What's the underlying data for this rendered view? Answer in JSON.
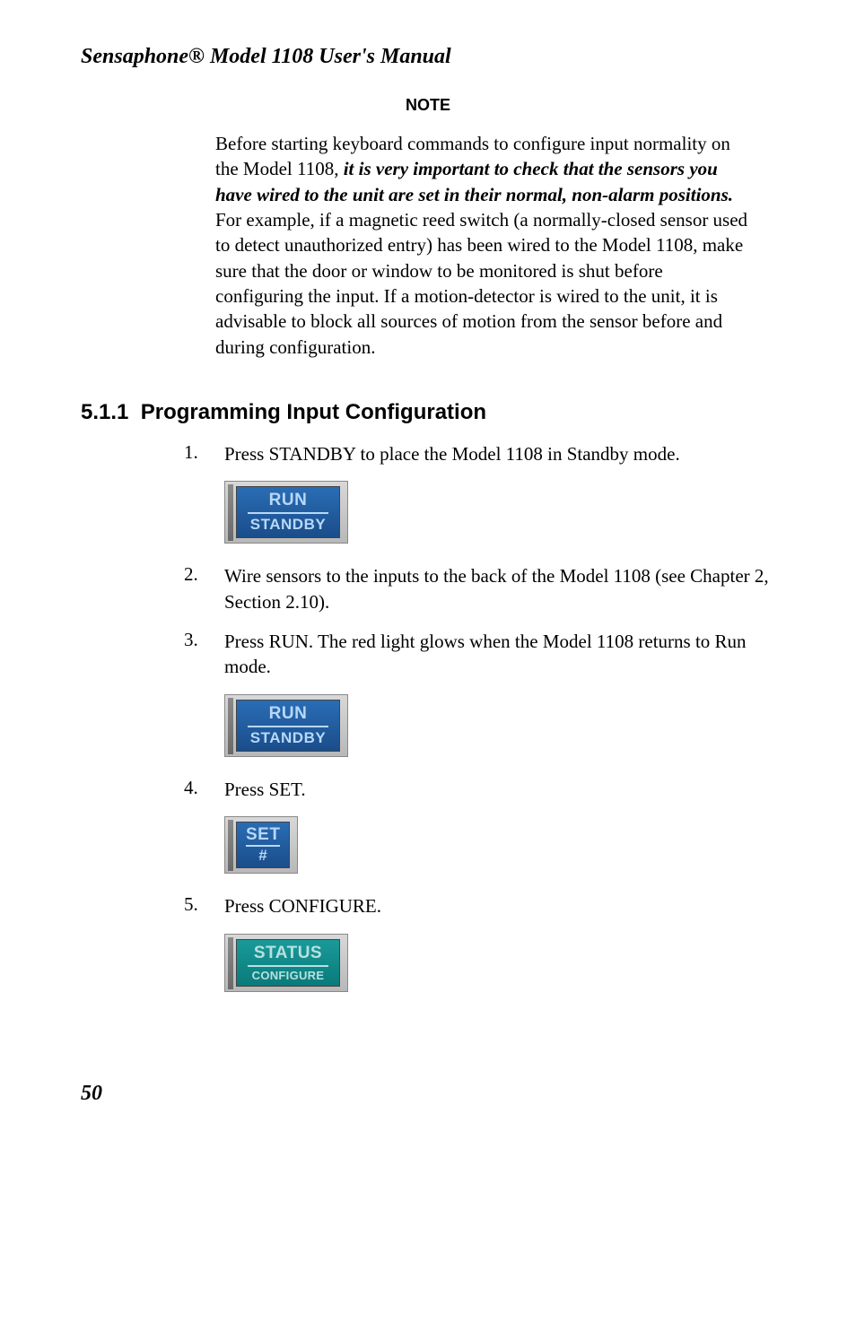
{
  "document": {
    "title": "Sensaphone® Model 1108 User's Manual"
  },
  "note": {
    "heading": "NOTE",
    "before_text": "Before starting keyboard commands to configure input normality on the Model 1108, ",
    "emphasis_text": "it is very important to check that the sensors you have wired to the unit are set in their normal, non-alarm positions.",
    "after_text": " For example, if a magnetic reed switch (a normally-closed sensor used to detect unauthorized entry) has been wired to the Model 1108, make sure that the door or window to be monitored is shut before configuring the input. If a motion-detector is wired to the unit, it is advisable to block all sources of motion from the sensor before and during configuration."
  },
  "section": {
    "number": "5.1.1",
    "title": "Programming Input Configuration"
  },
  "steps": [
    {
      "num": "1.",
      "text": "Press STANDBY to place the Model 1108 in Standby mode."
    },
    {
      "num": "2.",
      "text": "Wire sensors to the inputs to the back of the Model 1108 (see Chapter 2, Section 2.10)."
    },
    {
      "num": "3.",
      "text": "Press RUN. The red light glows when the Model 1108 returns to Run mode."
    },
    {
      "num": "4.",
      "text": "Press SET."
    },
    {
      "num": "5.",
      "text": "Press CONFIGURE."
    }
  ],
  "buttons": {
    "run_standby_1": {
      "line1": "RUN",
      "line2": "STANDBY",
      "color": "blue"
    },
    "run_standby_2": {
      "line1": "RUN",
      "line2": "STANDBY",
      "color": "blue"
    },
    "set": {
      "line1": "SET",
      "line2": "#",
      "color": "blue"
    },
    "status_configure": {
      "line1": "STATUS",
      "line2": "CONFIGURE",
      "color": "teal"
    }
  },
  "page_number": "50",
  "colors": {
    "blue_bg": "#1a4d8a",
    "blue_fg": "#b8d8f8",
    "teal_bg": "#0a7a7a",
    "teal_fg": "#b8e0e0",
    "text": "#000000",
    "bg": "#ffffff"
  }
}
